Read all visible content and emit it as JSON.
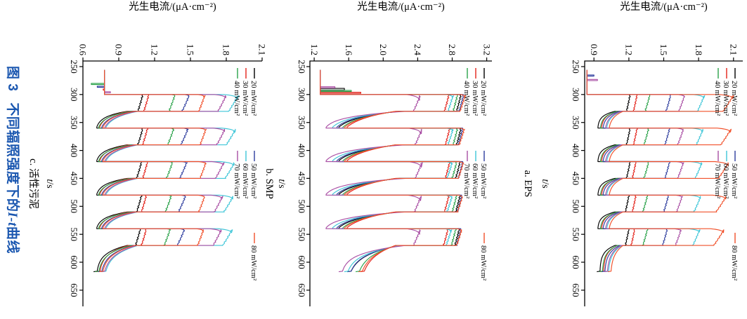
{
  "caption": {
    "number": "图 3",
    "text_before_it": "不同辐照强度下的",
    "italic_part": "I-t",
    "text_after_it": "曲线",
    "color": "#1b57b0"
  },
  "chart_data": {
    "type": "line",
    "orientation_note": "original portrait figure rotated 90deg clockwise in screenshot",
    "timing": {
      "t_start": 256,
      "first_on": 300,
      "period": 60,
      "on": 30,
      "cycles": 5,
      "t_end": 617
    },
    "legend_columns": [
      [
        0,
        1,
        2
      ],
      [
        3,
        4,
        5
      ],
      [
        6
      ]
    ],
    "charts": [
      {
        "id": "a",
        "sublabel": "a. EPS",
        "ylabel": "光生电流/(μA·cm⁻²)",
        "xlabel_italic": "t",
        "xlabel_rest": "/s",
        "ylim": [
          0.82,
          2.18
        ],
        "yticks": [
          0.9,
          1.2,
          1.5,
          1.8,
          2.1
        ],
        "ytick_labels": [
          "0.9",
          "1.2",
          "1.5",
          "1.8",
          "2.1"
        ],
        "xlim": [
          240,
          679
        ],
        "xticks": [
          250,
          300,
          350,
          400,
          450,
          500,
          550,
          600,
          650
        ],
        "xtick_labels": [
          "250",
          "300",
          "350",
          "400",
          "450",
          "500",
          "550",
          "600",
          "650"
        ],
        "baseline": 0.84,
        "series": [
          {
            "label": "20 mW/cm²",
            "color": "#000000",
            "plateaus": [
              1.21,
              1.21,
              1.21,
              1.2,
              1.2
            ],
            "rise_s": 1,
            "rise_drop": 0,
            "decay": 0.03,
            "off_start": 1.08,
            "off_end": 0.93,
            "tau": 8,
            "final_end": 0.95,
            "spike": null
          },
          {
            "label": "30 mW/cm²",
            "color": "#e32119",
            "plateaus": [
              1.27,
              1.27,
              1.26,
              1.26,
              1.25
            ],
            "rise_s": 1,
            "rise_drop": 0,
            "decay": 0.03,
            "off_start": 1.1,
            "off_end": 0.96,
            "tau": 9,
            "final_end": 0.98,
            "spike": null
          },
          {
            "label": "40 mW/cm²",
            "color": "#2ba24a",
            "plateaus": [
              1.38,
              1.37,
              1.37,
              1.36,
              1.36
            ],
            "rise_s": 1,
            "rise_drop": 0,
            "decay": 0.04,
            "off_start": 1.1,
            "off_end": 0.95,
            "tau": 9,
            "final_end": 0.97,
            "spike": null
          },
          {
            "label": "50 mW/cm²",
            "color": "#2e3d9e",
            "plateaus": [
              1.56,
              1.55,
              1.55,
              1.54,
              1.53
            ],
            "rise_s": 2,
            "rise_drop": 0,
            "decay": 0.04,
            "off_start": 1.12,
            "off_end": 0.97,
            "tau": 10,
            "final_end": 0.99,
            "spike": {
              "t": 265,
              "I": 0.9,
              "w": 2
            }
          },
          {
            "label": "60 mW/cm²",
            "color": "#3fc6d8",
            "plateaus": [
              1.85,
              1.84,
              1.83,
              1.82,
              1.81
            ],
            "rise_s": 6,
            "rise_drop": 0.1,
            "decay": 0.06,
            "off_start": 1.14,
            "off_end": 1.0,
            "tau": 11,
            "final_end": 1.02,
            "spike": null
          },
          {
            "label": "70 mW/cm²",
            "color": "#a94fa4",
            "plateaus": [
              1.68,
              1.67,
              1.67,
              1.66,
              1.65
            ],
            "rise_s": 4,
            "rise_drop": 0.06,
            "decay": 0.05,
            "off_start": 1.13,
            "off_end": 0.99,
            "tau": 11,
            "final_end": 1.01,
            "spike": {
              "t": 273,
              "I": 0.93,
              "w": 2
            }
          },
          {
            "label": "80 mW/cm²",
            "color": "#f1502a",
            "plateaus": [
              2.1,
              2.08,
              2.06,
              2.04,
              2.02
            ],
            "rise_s": 7,
            "rise_drop": 0.12,
            "decay": 0.09,
            "off_start": 1.15,
            "off_end": 1.02,
            "tau": 12,
            "final_end": 1.04,
            "spike": null
          }
        ]
      },
      {
        "id": "b",
        "sublabel": "b. SMP",
        "ylabel": "光生电流/(μA·cm⁻²)",
        "xlabel_italic": "t",
        "xlabel_rest": "/s",
        "ylim": [
          1.15,
          3.26
        ],
        "yticks": [
          1.2,
          1.6,
          2.0,
          2.4,
          2.8,
          3.2
        ],
        "ytick_labels": [
          "1.2",
          "1.6",
          "2.0",
          "2.4",
          "2.8",
          "3.2"
        ],
        "xlim": [
          240,
          679
        ],
        "xticks": [
          250,
          300,
          350,
          400,
          450,
          500,
          550,
          600,
          650
        ],
        "xtick_labels": [
          "250",
          "300",
          "350",
          "400",
          "450",
          "500",
          "550",
          "600",
          "650"
        ],
        "baseline": 1.27,
        "series": [
          {
            "label": "20 mW/cm²",
            "color": "#000000",
            "plateaus": [
              2.9,
              2.9,
              2.89,
              2.89,
              2.88
            ],
            "rise_s": 2,
            "rise_drop": 0,
            "decay": 0.05,
            "off_start": 2.18,
            "off_end": 1.38,
            "tau": 14,
            "final_end": 1.57,
            "spike": {
              "t": 289,
              "I": 1.55,
              "w": 3
            }
          },
          {
            "label": "30 mW/cm²",
            "color": "#e32119",
            "plateaus": [
              2.76,
              2.77,
              2.77,
              2.76,
              2.75
            ],
            "rise_s": 2,
            "rise_drop": 0,
            "decay": 0.05,
            "off_start": 2.14,
            "off_end": 1.45,
            "tau": 17,
            "final_end": 1.72,
            "spike": {
              "t": 296,
              "I": 1.74,
              "w": 2
            }
          },
          {
            "label": "40 mW/cm²",
            "color": "#2ba24a",
            "plateaus": [
              2.86,
              2.86,
              2.85,
              2.85,
              2.84
            ],
            "rise_s": 2,
            "rise_drop": 0,
            "decay": 0.05,
            "off_start": 2.16,
            "off_end": 1.42,
            "tau": 15,
            "final_end": 1.67,
            "spike": {
              "t": 292.5,
              "I": 1.63,
              "w": 2
            }
          },
          {
            "label": "50 mW/cm²",
            "color": "#2e3d9e",
            "plateaus": [
              2.93,
              2.92,
              2.92,
              2.91,
              2.9
            ],
            "rise_s": 2,
            "rise_drop": 0,
            "decay": 0.05,
            "off_start": 2.19,
            "off_end": 1.37,
            "tau": 13,
            "final_end": 1.58,
            "spike": null
          },
          {
            "label": "60 mW/cm²",
            "color": "#3fc6d8",
            "plateaus": [
              2.81,
              2.81,
              2.8,
              2.8,
              2.79
            ],
            "rise_s": 5,
            "rise_drop": 0.08,
            "decay": 0.06,
            "off_start": 2.21,
            "off_end": 1.33,
            "tau": 12,
            "final_end": 1.55,
            "spike": null
          },
          {
            "label": "70 mW/cm²",
            "color": "#a94fa4",
            "plateaus": [
              2.43,
              2.45,
              2.45,
              2.44,
              2.43
            ],
            "rise_s": 10,
            "rise_drop": 0.16,
            "decay": 0.08,
            "off_start": 2.26,
            "off_end": 1.28,
            "tau": 10,
            "final_end": 1.5,
            "spike": {
              "t": 286,
              "I": 1.44,
              "w": 2
            }
          },
          {
            "label": "80 mW/cm²",
            "color": "#f1502a",
            "plateaus": [
              2.95,
              2.94,
              2.93,
              2.92,
              2.91
            ],
            "rise_s": 4,
            "rise_drop": 0.05,
            "decay": 0.06,
            "off_start": 2.15,
            "off_end": 1.43,
            "tau": 16,
            "final_end": 1.7,
            "spike": null
          }
        ]
      },
      {
        "id": "c",
        "sublabel": "c. 活性污泥",
        "ylabel": "光生电流/(μA·cm⁻²)",
        "xlabel_italic": "t",
        "xlabel_rest": "/s",
        "ylim": [
          0.6,
          2.1
        ],
        "yticks": [
          0.6,
          0.9,
          1.2,
          1.5,
          1.8,
          2.1
        ],
        "ytick_labels": [
          "0.6",
          "0.9",
          "1.2",
          "1.5",
          "1.8",
          "2.1"
        ],
        "xlim": [
          240,
          679
        ],
        "xticks": [
          250,
          300,
          350,
          400,
          450,
          500,
          550,
          600,
          650
        ],
        "xtick_labels": [
          "250",
          "300",
          "350",
          "400",
          "450",
          "500",
          "550",
          "600",
          "650"
        ],
        "baseline": 0.78,
        "series": [
          {
            "label": "20 mW/cm²",
            "color": "#000000",
            "plateaus": [
              1.1,
              1.1,
              1.09,
              1.09,
              1.08
            ],
            "rise_s": 1,
            "rise_drop": 0,
            "decay": 0.04,
            "off_start": 0.97,
            "off_end": 0.7,
            "tau": 10,
            "final_end": 0.71,
            "spike": null
          },
          {
            "label": "30 mW/cm²",
            "color": "#e32119",
            "plateaus": [
              1.15,
              1.14,
              1.14,
              1.13,
              1.13
            ],
            "rise_s": 1,
            "rise_drop": 0,
            "decay": 0.04,
            "off_start": 0.98,
            "off_end": 0.72,
            "tau": 11,
            "final_end": 0.73,
            "spike": {
              "t": 290,
              "I": 0.77,
              "w": 2
            }
          },
          {
            "label": "40 mW/cm²",
            "color": "#2ba24a",
            "plateaus": [
              1.37,
              1.36,
              1.35,
              1.34,
              1.33
            ],
            "rise_s": 2,
            "rise_drop": 0.03,
            "decay": 0.05,
            "off_start": 1.0,
            "off_end": 0.71,
            "tau": 11,
            "final_end": 0.72,
            "spike": {
              "t": 280,
              "I": 0.67,
              "w": 2
            }
          },
          {
            "label": "50 mW/cm²",
            "color": "#2e3d9e",
            "plateaus": [
              1.49,
              1.48,
              1.47,
              1.46,
              1.45
            ],
            "rise_s": 3,
            "rise_drop": 0.04,
            "decay": 0.06,
            "off_start": 1.02,
            "off_end": 0.73,
            "tau": 12,
            "final_end": 0.74,
            "spike": {
              "t": 285,
              "I": 0.72,
              "w": 2
            }
          },
          {
            "label": "60 mW/cm²",
            "color": "#3fc6d8",
            "plateaus": [
              1.9,
              1.88,
              1.87,
              1.86,
              1.85
            ],
            "rise_s": 7,
            "rise_drop": 0.12,
            "decay": 0.08,
            "off_start": 1.06,
            "off_end": 0.76,
            "tau": 13,
            "final_end": 0.77,
            "spike": null
          },
          {
            "label": "70 mW/cm²",
            "color": "#a94fa4",
            "plateaus": [
              1.8,
              1.79,
              1.78,
              1.77,
              1.76
            ],
            "rise_s": 6,
            "rise_drop": 0.1,
            "decay": 0.07,
            "off_start": 1.05,
            "off_end": 0.75,
            "tau": 13,
            "final_end": 0.76,
            "spike": {
              "t": 295,
              "I": 0.83,
              "w": 2
            }
          },
          {
            "label": "80 mW/cm²",
            "color": "#f1502a",
            "plateaus": [
              1.62,
              1.63,
              1.63,
              1.62,
              1.61
            ],
            "rise_s": 4,
            "rise_drop": 0.06,
            "decay": 0.05,
            "off_start": 1.03,
            "off_end": 0.74,
            "tau": 12,
            "final_end": 0.75,
            "spike": null
          }
        ]
      }
    ]
  }
}
